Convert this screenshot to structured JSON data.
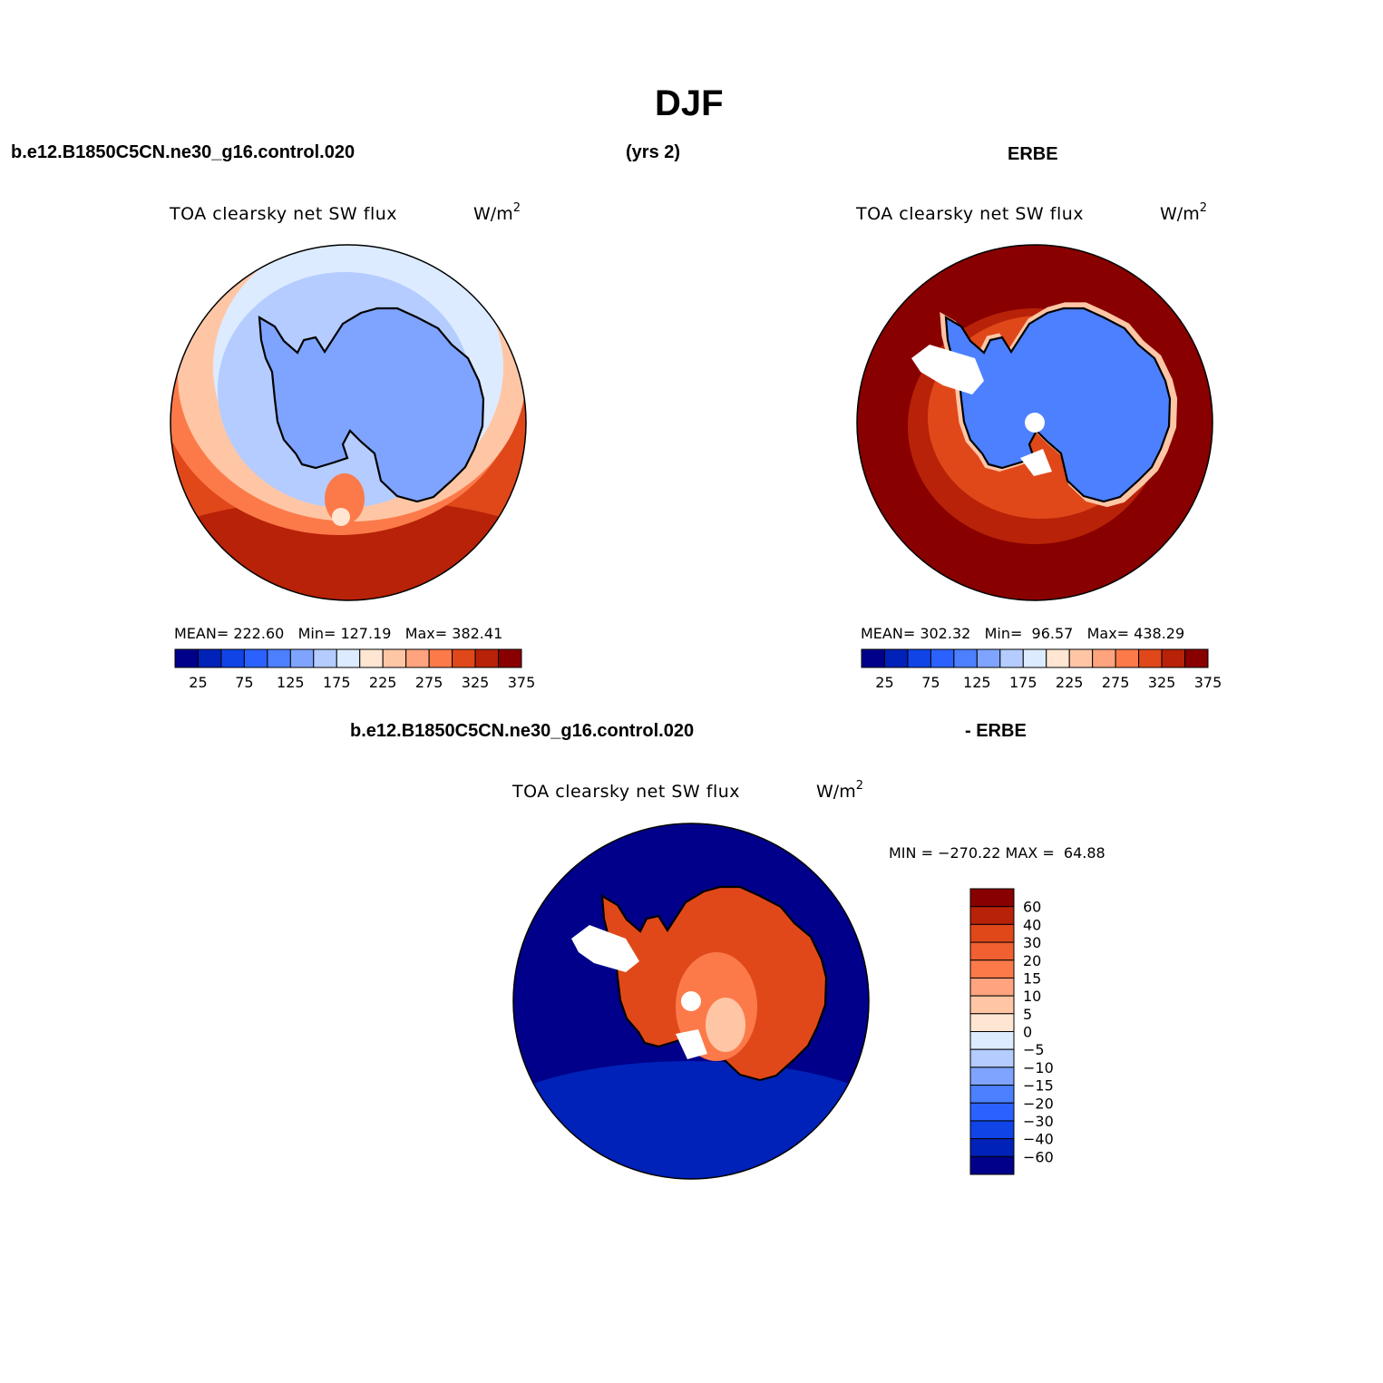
{
  "page": {
    "title": "DJF",
    "case_name": "b.e12.B1850C5CN.ne30_g16.control.020",
    "years": "(yrs 2)",
    "obs_name": "ERBE",
    "diff_case_name": "b.e12.B1850C5CN.ne30_g16.control.020",
    "diff_obs_name": "- ERBE"
  },
  "panels": {
    "model": {
      "variable": "TOA clearsky net SW flux",
      "units": "W/m",
      "units_sup": "2",
      "stats": "MEAN= 222.60   Min= 127.19   Max= 382.41"
    },
    "obs": {
      "variable": "TOA clearsky net SW flux",
      "units": "W/m",
      "units_sup": "2",
      "stats": "MEAN= 302.32   Min=  96.57   Max= 438.29"
    },
    "diff": {
      "variable": "TOA clearsky net SW flux",
      "units": "W/m",
      "units_sup": "2",
      "stats": "MIN = −270.22 MAX =  64.88"
    }
  },
  "colorbars": {
    "abs": {
      "colors": [
        "#00008a",
        "#0022b8",
        "#1044e6",
        "#2b62ff",
        "#4c80ff",
        "#7fa4ff",
        "#b4ccff",
        "#dcebff",
        "#ffe6d2",
        "#ffc6a6",
        "#ffa47e",
        "#fc7a4a",
        "#e0481a",
        "#b82208",
        "#880000"
      ],
      "labels": [
        "25",
        "75",
        "125",
        "175",
        "225",
        "275",
        "325",
        "375"
      ]
    },
    "diff": {
      "colors": [
        "#880000",
        "#b82208",
        "#e0481a",
        "#f06030",
        "#fc7a4a",
        "#ffa47e",
        "#ffc6a6",
        "#ffe6d2",
        "#dcebff",
        "#b4ccff",
        "#7fa4ff",
        "#4c80ff",
        "#2b62ff",
        "#1044e6",
        "#0022b8",
        "#00008a"
      ],
      "labels": [
        "60",
        "40",
        "30",
        "20",
        "15",
        "10",
        "5",
        "0",
        "−5",
        "−10",
        "−15",
        "−20",
        "−30",
        "−40",
        "−60"
      ]
    }
  }
}
